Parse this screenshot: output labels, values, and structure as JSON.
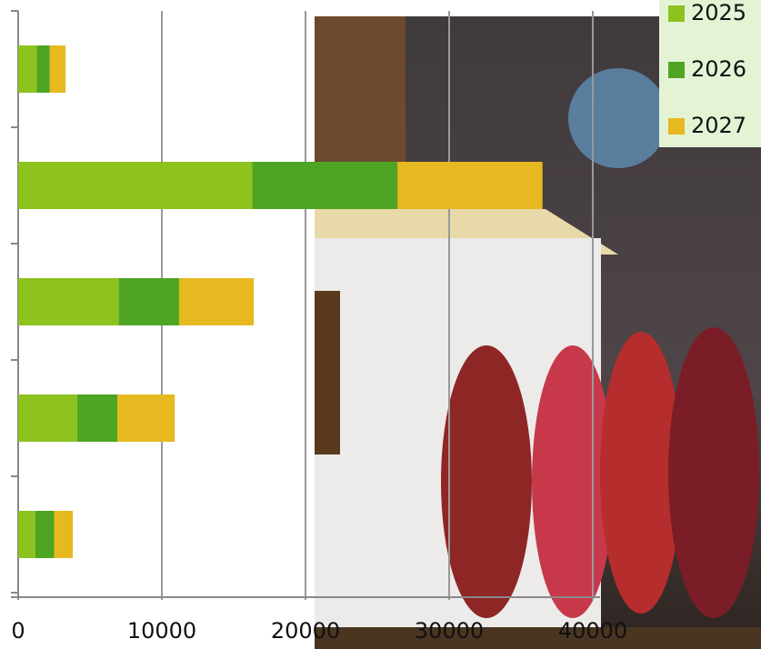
{
  "chart_data": {
    "type": "bar",
    "orientation": "horizontal",
    "stacked": true,
    "categories": [
      null,
      null,
      null,
      null,
      null
    ],
    "series": [
      {
        "name": "2025",
        "color": "#8dc21f",
        "values": [
          1300,
          16300,
          7000,
          4100,
          1200
        ]
      },
      {
        "name": "2026",
        "color": "#4da523",
        "values": [
          900,
          10100,
          4200,
          2800,
          1300
        ]
      },
      {
        "name": "2027",
        "color": "#e6b920",
        "values": [
          1100,
          10100,
          5200,
          4000,
          1300
        ]
      }
    ],
    "xlim": [
      0,
      50000
    ],
    "xticks": [
      0,
      10000,
      20000,
      30000,
      40000
    ],
    "grid": true,
    "legend": "top-right"
  }
}
